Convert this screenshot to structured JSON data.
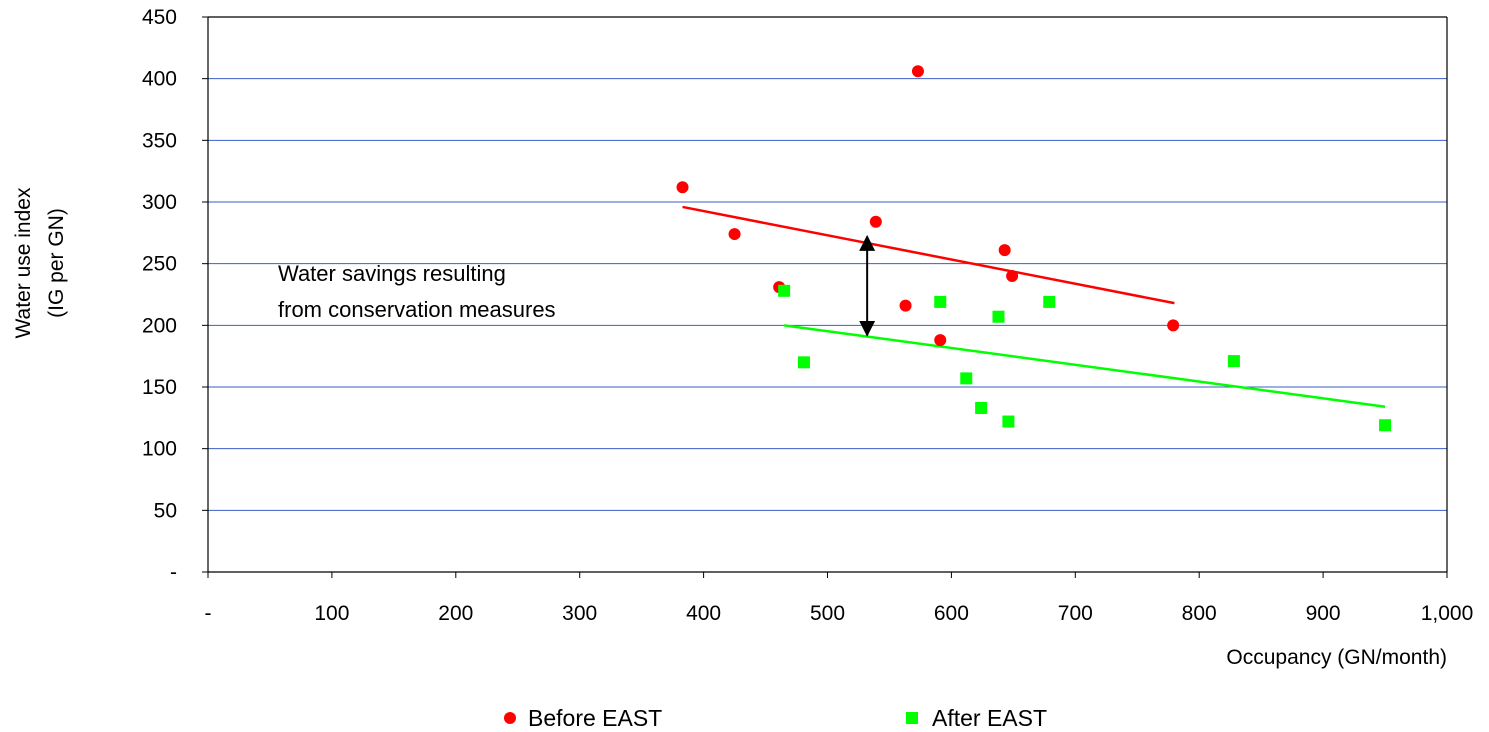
{
  "chart_data": {
    "type": "scatter",
    "title": "",
    "xlabel": "Occupancy (GN/month)",
    "ylabel_lines": [
      "Water use index",
      "(IG per GN)"
    ],
    "xlim": [
      0,
      1000
    ],
    "ylim": [
      0,
      450
    ],
    "x_ticks": [
      0,
      100,
      200,
      300,
      400,
      500,
      600,
      700,
      800,
      900,
      1000
    ],
    "x_tick_labels": [
      "-",
      "100",
      "200",
      "300",
      "400",
      "500",
      "600",
      "700",
      "800",
      "900",
      "1,000"
    ],
    "y_ticks": [
      0,
      50,
      100,
      150,
      200,
      250,
      300,
      350,
      400,
      450
    ],
    "y_tick_labels": [
      "-",
      "50",
      "100",
      "150",
      "200",
      "250",
      "300",
      "350",
      "400",
      "450"
    ],
    "grid": "horizontal",
    "legend_position": "bottom",
    "series": [
      {
        "name": "Before EAST",
        "marker": "circle",
        "color": "#ff0000",
        "x": [
          383,
          425,
          461,
          539,
          563,
          573,
          591,
          643,
          649,
          779
        ],
        "y": [
          312,
          274,
          231,
          284,
          216,
          406,
          188,
          261,
          240,
          200
        ],
        "trendline": {
          "x": [
            383,
            780
          ],
          "y": [
            296,
            218
          ]
        }
      },
      {
        "name": "After EAST",
        "marker": "square",
        "color": "#00ff00",
        "x": [
          465,
          481,
          591,
          612,
          624,
          638,
          646,
          679,
          828,
          950
        ],
        "y": [
          228,
          170,
          219,
          157,
          133,
          207,
          122,
          219,
          171,
          119
        ],
        "trendline": {
          "x": [
            465,
            950
          ],
          "y": [
            200,
            134
          ]
        }
      }
    ],
    "annotation": {
      "lines": [
        "Water savings resulting",
        "from conservation measures"
      ],
      "arrow": {
        "x": 532,
        "y_from": 272,
        "y_to": 192
      }
    }
  }
}
